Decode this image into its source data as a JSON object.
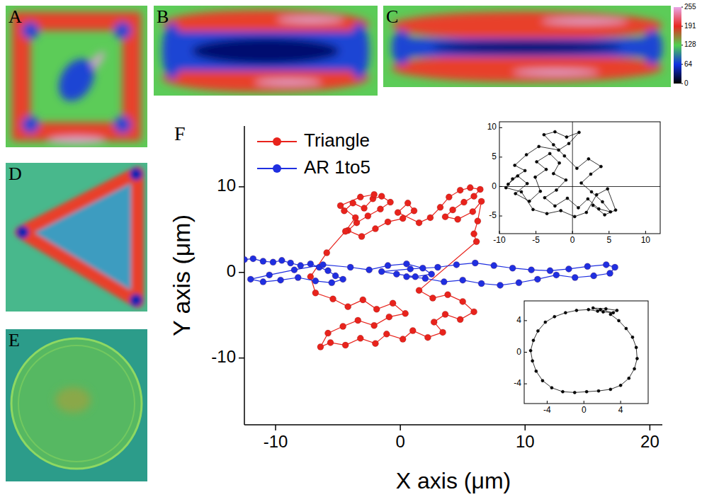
{
  "panels": [
    {
      "letter": "A"
    },
    {
      "letter": "B"
    },
    {
      "letter": "C"
    },
    {
      "letter": "D"
    },
    {
      "letter": "E"
    },
    {
      "letter": "F"
    }
  ],
  "colorbar": {
    "range": [
      0,
      255
    ],
    "ticks": [
      0,
      64,
      128,
      191,
      255
    ]
  },
  "chart_data": [
    {
      "type": "line",
      "x_label": "X axis (μm)",
      "y_label": "Y axis (μm)",
      "xlim": [
        -12.5,
        21
      ],
      "ylim": [
        -17.8,
        17.1
      ],
      "xticks": [
        -10,
        0,
        10,
        20
      ],
      "yticks": [
        -10,
        0,
        10
      ],
      "legend": "upper left",
      "series": [
        {
          "name": "Triangle",
          "color": "#e8231c",
          "marker": "circle",
          "x": [
            -4.5,
            -3.8,
            -2.9,
            -2.2,
            -1.5,
            -0.8,
            -1.6,
            -2.6,
            -3.5,
            -4.2,
            -3.1,
            -2.0,
            -1.0,
            0.2,
            1.1,
            0.6,
            -0.2,
            1.5,
            2.4,
            3.2,
            3.9,
            4.8,
            5.6,
            6.4,
            5.9,
            5.1,
            4.2,
            3.6,
            4.6,
            5.8,
            6.5,
            6.2,
            5.9,
            6.1,
            1.5,
            2.6,
            3.8,
            5.0,
            5.9,
            4.8,
            3.6,
            2.7,
            3.4,
            2.2,
            1.0,
            0.2,
            -1.1,
            -2.0,
            -3.2,
            -4.4,
            -5.6,
            -6.4,
            -5.8,
            -4.6,
            -3.4,
            -2.1,
            -0.9,
            0.4,
            -0.6,
            -1.9,
            -3.0,
            -4.2,
            -5.4,
            -6.8,
            -7.2,
            -5.9,
            -4.4,
            -3.6,
            -4.8,
            -3.2,
            -2.1
          ],
          "values": [
            7.2,
            8.1,
            7.5,
            8.6,
            8.9,
            8.2,
            7.4,
            6.6,
            5.8,
            4.9,
            4.2,
            5.1,
            5.9,
            6.3,
            7.2,
            8.1,
            7.0,
            5.8,
            6.4,
            7.6,
            8.8,
            9.6,
            9.9,
            9.7,
            8.9,
            8.2,
            7.3,
            6.5,
            6.2,
            7.1,
            8.3,
            6.0,
            4.5,
            3.6,
            -2.1,
            -3.0,
            -2.6,
            -3.4,
            -4.6,
            -5.5,
            -4.9,
            -5.8,
            -7.0,
            -7.6,
            -6.8,
            -7.8,
            -7.2,
            -8.3,
            -7.7,
            -8.5,
            -8.2,
            -8.7,
            -7.1,
            -6.3,
            -5.6,
            -6.2,
            -5.2,
            -4.8,
            -3.6,
            -4.3,
            -3.2,
            -4.0,
            -3.1,
            -2.4,
            -0.5,
            2.3,
            4.8,
            6.4,
            7.8,
            8.8,
            9.1
          ]
        },
        {
          "name": "AR 1to5",
          "color": "#1f2fe0",
          "marker": "circle",
          "x": [
            -12.5,
            -11.8,
            -11,
            -10.2,
            -9.5,
            -8.8,
            -8,
            -7.2,
            -6.5,
            -5.8,
            -5.2,
            -4.6,
            -5.5,
            -6.8,
            -8.2,
            -9.6,
            -11,
            -12,
            -10.5,
            -8.5,
            -6.2,
            -4,
            -2.5,
            -1,
            0.5,
            1.8,
            2.5,
            1.2,
            -0.3,
            -1.5,
            0.8,
            3,
            4.5,
            6,
            7.5,
            9,
            10.5,
            12,
            13.5,
            15,
            16.5,
            17.2,
            16.8,
            15.5,
            14,
            12.5,
            11,
            9.5,
            8,
            6.5,
            5,
            3.5,
            2,
            0.5
          ],
          "values": [
            1.5,
            1.6,
            1.3,
            1.2,
            1.4,
            1.1,
            0.8,
            1.0,
            0.6,
            0.2,
            -0.4,
            -0.8,
            -1.2,
            -1.0,
            -0.6,
            -0.9,
            -1.1,
            -0.8,
            -0.3,
            0.3,
            0.9,
            0.6,
            0.3,
            0.8,
            1.0,
            0.5,
            -0.2,
            -0.5,
            -0.2,
            0.1,
            0.4,
            0.6,
            0.9,
            1.1,
            0.8,
            0.5,
            0.3,
            0.2,
            0.4,
            0.7,
            0.9,
            0.6,
            -0.1,
            -0.4,
            -0.6,
            -0.3,
            -0.8,
            -1.2,
            -1.5,
            -1.3,
            -0.9,
            -1.1,
            -0.7,
            -0.5
          ]
        }
      ]
    },
    {
      "type": "line",
      "xlim": [
        -10,
        12
      ],
      "ylim": [
        -8,
        11
      ],
      "xticks": [
        -10,
        -5,
        0,
        5,
        10
      ],
      "yticks": [
        -5,
        0,
        5,
        10
      ],
      "series": [
        {
          "color": "#000000",
          "marker": "circle",
          "x": [
            -8.8,
            -7.5,
            -6.2,
            -7.8,
            -5.9,
            -4.4,
            -5.1,
            -3.6,
            -4.9,
            -3.1,
            -1.8,
            -2.6,
            -0.9,
            -2.2,
            -3.8,
            -2.4,
            -0.7,
            0.8,
            2.1,
            3.6,
            5.2,
            4.1,
            2.6,
            1.2,
            2.5,
            3.9,
            2.2,
            0.6,
            -1.1,
            -2.6,
            -3.9,
            -2.4,
            -0.8,
            0.9,
            -0.5,
            -1.9,
            -4.6,
            -6.3,
            -7.9,
            -6.5,
            -8.2,
            -9.1,
            -7.0,
            -5.4,
            -3.5,
            -1.6,
            0.3,
            1.9,
            3.3,
            4.8,
            5.9,
            4.4,
            2.8
          ],
          "values": [
            0.4,
            1.8,
            0.5,
            -1.2,
            -2.5,
            -0.8,
            1.6,
            2.9,
            4.2,
            5.6,
            4.0,
            2.2,
            1.1,
            -0.6,
            -1.9,
            -3.3,
            -2.0,
            -3.6,
            -2.1,
            -3.8,
            -4.3,
            -2.6,
            -0.9,
            0.6,
            2.1,
            3.4,
            4.7,
            3.1,
            5.2,
            7.1,
            8.8,
            9.3,
            8.4,
            9.2,
            7.3,
            6.2,
            6.8,
            5.4,
            3.6,
            2.7,
            1.3,
            -0.2,
            -0.9,
            -3.9,
            -4.6,
            -4.1,
            -5.1,
            -4.4,
            -1.4,
            -0.4,
            -4.0,
            -4.8,
            -3.2
          ]
        }
      ]
    },
    {
      "type": "line",
      "xlim": [
        -6.5,
        7
      ],
      "ylim": [
        -6.5,
        6.5
      ],
      "xticks": [
        -4,
        0,
        4
      ],
      "yticks": [
        -4,
        0,
        4
      ],
      "series": [
        {
          "color": "#000000",
          "marker": "circle",
          "x": [
            1.5,
            0.5,
            -0.8,
            -2.0,
            -3.2,
            -4.2,
            -5.0,
            -5.5,
            -5.8,
            -5.6,
            -5.2,
            -4.5,
            -3.5,
            -2.3,
            -1.0,
            0.3,
            1.6,
            2.9,
            4.0,
            4.9,
            5.5,
            5.8,
            5.7,
            5.3,
            4.6,
            3.8,
            2.9,
            3.6,
            2.4,
            1.0,
            2.1,
            3.2,
            1.8
          ],
          "values": [
            5.2,
            5.4,
            5.3,
            5.0,
            4.5,
            3.8,
            2.7,
            1.5,
            0.2,
            -1.1,
            -2.4,
            -3.6,
            -4.5,
            -5.0,
            -5.1,
            -5.0,
            -4.9,
            -4.7,
            -4.2,
            -3.3,
            -2.1,
            -0.8,
            0.6,
            1.9,
            3.0,
            4.0,
            4.8,
            5.3,
            5.5,
            5.6,
            5.1,
            5.0,
            5.4
          ]
        }
      ]
    }
  ]
}
